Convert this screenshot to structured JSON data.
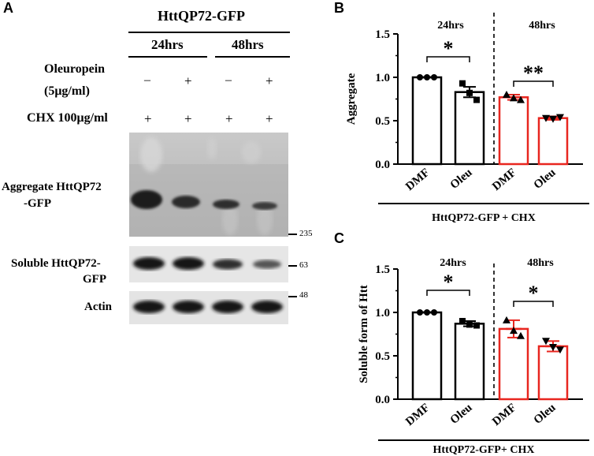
{
  "panels": {
    "a": "A",
    "b": "B",
    "c": "C"
  },
  "blot": {
    "construct": "HttQP72-GFP",
    "time_points": [
      "24hrs",
      "48hrs"
    ],
    "rows": [
      {
        "label_lines": [
          "Oleuropein",
          "(5μg/ml)"
        ],
        "marks": [
          "–",
          "+",
          "–",
          "+"
        ]
      },
      {
        "label_lines": [
          "CHX 100μg/ml"
        ],
        "marks": [
          "+",
          "+",
          "+",
          "+"
        ]
      }
    ],
    "band_labels": {
      "aggregate": [
        "Aggregate HttQP72",
        "-GFP"
      ],
      "soluble": [
        "Soluble HttQP72-",
        "GFP"
      ],
      "actin": [
        "Actin"
      ]
    },
    "markers": {
      "m235": "235",
      "m63": "63",
      "m48": "48"
    }
  },
  "chart_data": [
    {
      "type": "bar",
      "panel": "B",
      "ylabel": "Aggregate",
      "xlabel": "HttQP72-GFP + CHX",
      "ylim": [
        0,
        1.5
      ],
      "yticks": [
        "0.0",
        "0.5",
        "1.0",
        "1.5"
      ],
      "categories": [
        "DMF",
        "Oleu",
        "DMF",
        "Oleu"
      ],
      "group_labels": [
        "24hrs",
        "48hrs"
      ],
      "values": [
        1.0,
        0.83,
        0.77,
        0.53
      ],
      "errors": [
        0.0,
        0.06,
        0.03,
        0.02
      ],
      "points": [
        [
          1.0,
          1.0,
          1.0
        ],
        [
          0.93,
          0.82,
          0.74
        ],
        [
          0.8,
          0.76,
          0.74
        ],
        [
          0.53,
          0.52,
          0.54
        ]
      ],
      "significance": [
        "*",
        "**"
      ],
      "bar_colors": [
        "#000000",
        "#000000",
        "#e8261f",
        "#e8261f"
      ]
    },
    {
      "type": "bar",
      "panel": "C",
      "ylabel": "Soluble form of Htt",
      "xlabel": "HttQP72-GFP+ CHX",
      "ylim": [
        0,
        1.5
      ],
      "yticks": [
        "0.0",
        "0.5",
        "1.0",
        "1.5"
      ],
      "categories": [
        "DMF",
        "Oleu",
        "DMF",
        "Oleu"
      ],
      "group_labels": [
        "24hrs",
        "48hrs"
      ],
      "values": [
        1.0,
        0.87,
        0.81,
        0.61
      ],
      "errors": [
        0.0,
        0.03,
        0.1,
        0.06
      ],
      "points": [
        [
          1.0,
          1.0,
          1.0
        ],
        [
          0.9,
          0.86,
          0.85
        ],
        [
          0.91,
          0.79,
          0.73
        ],
        [
          0.67,
          0.6,
          0.57
        ]
      ],
      "significance": [
        "*",
        "*"
      ],
      "bar_colors": [
        "#000000",
        "#000000",
        "#e8261f",
        "#e8261f"
      ]
    }
  ]
}
